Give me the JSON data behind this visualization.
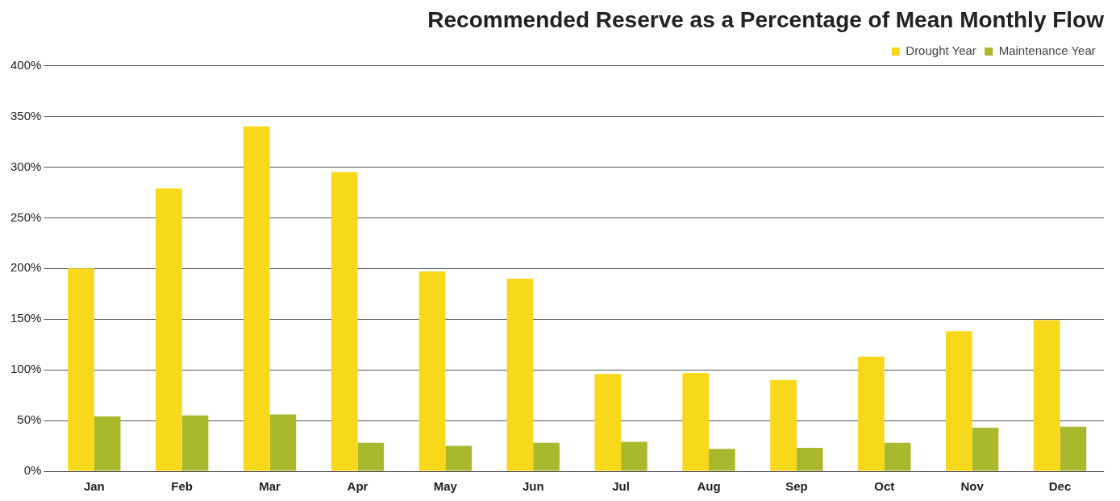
{
  "chart_data": {
    "type": "bar",
    "title": "Recommended Reserve as a Percentage of Mean Monthly Flow",
    "categories": [
      "Jan",
      "Feb",
      "Mar",
      "Apr",
      "May",
      "Jun",
      "Jul",
      "Aug",
      "Sep",
      "Oct",
      "Nov",
      "Dec"
    ],
    "series": [
      {
        "name": "Drought Year",
        "color": "#f7d81a",
        "values": [
          200,
          279,
          340,
          295,
          197,
          190,
          96,
          97,
          90,
          113,
          138,
          149
        ]
      },
      {
        "name": "Maintenance Year",
        "color": "#a9b92e",
        "values": [
          54,
          55,
          56,
          28,
          25,
          28,
          29,
          22,
          23,
          28,
          43,
          44
        ]
      }
    ],
    "ylim": [
      0,
      400
    ],
    "yticks": [
      {
        "value": 0,
        "label": "0%"
      },
      {
        "value": 50,
        "label": "50%"
      },
      {
        "value": 100,
        "label": "100%"
      },
      {
        "value": 150,
        "label": "150%"
      },
      {
        "value": 200,
        "label": "200%"
      },
      {
        "value": 250,
        "label": "250%"
      },
      {
        "value": 300,
        "label": "300%"
      },
      {
        "value": 350,
        "label": "350%"
      },
      {
        "value": 400,
        "label": "400%"
      }
    ],
    "grid": "y",
    "legend": "top right"
  }
}
